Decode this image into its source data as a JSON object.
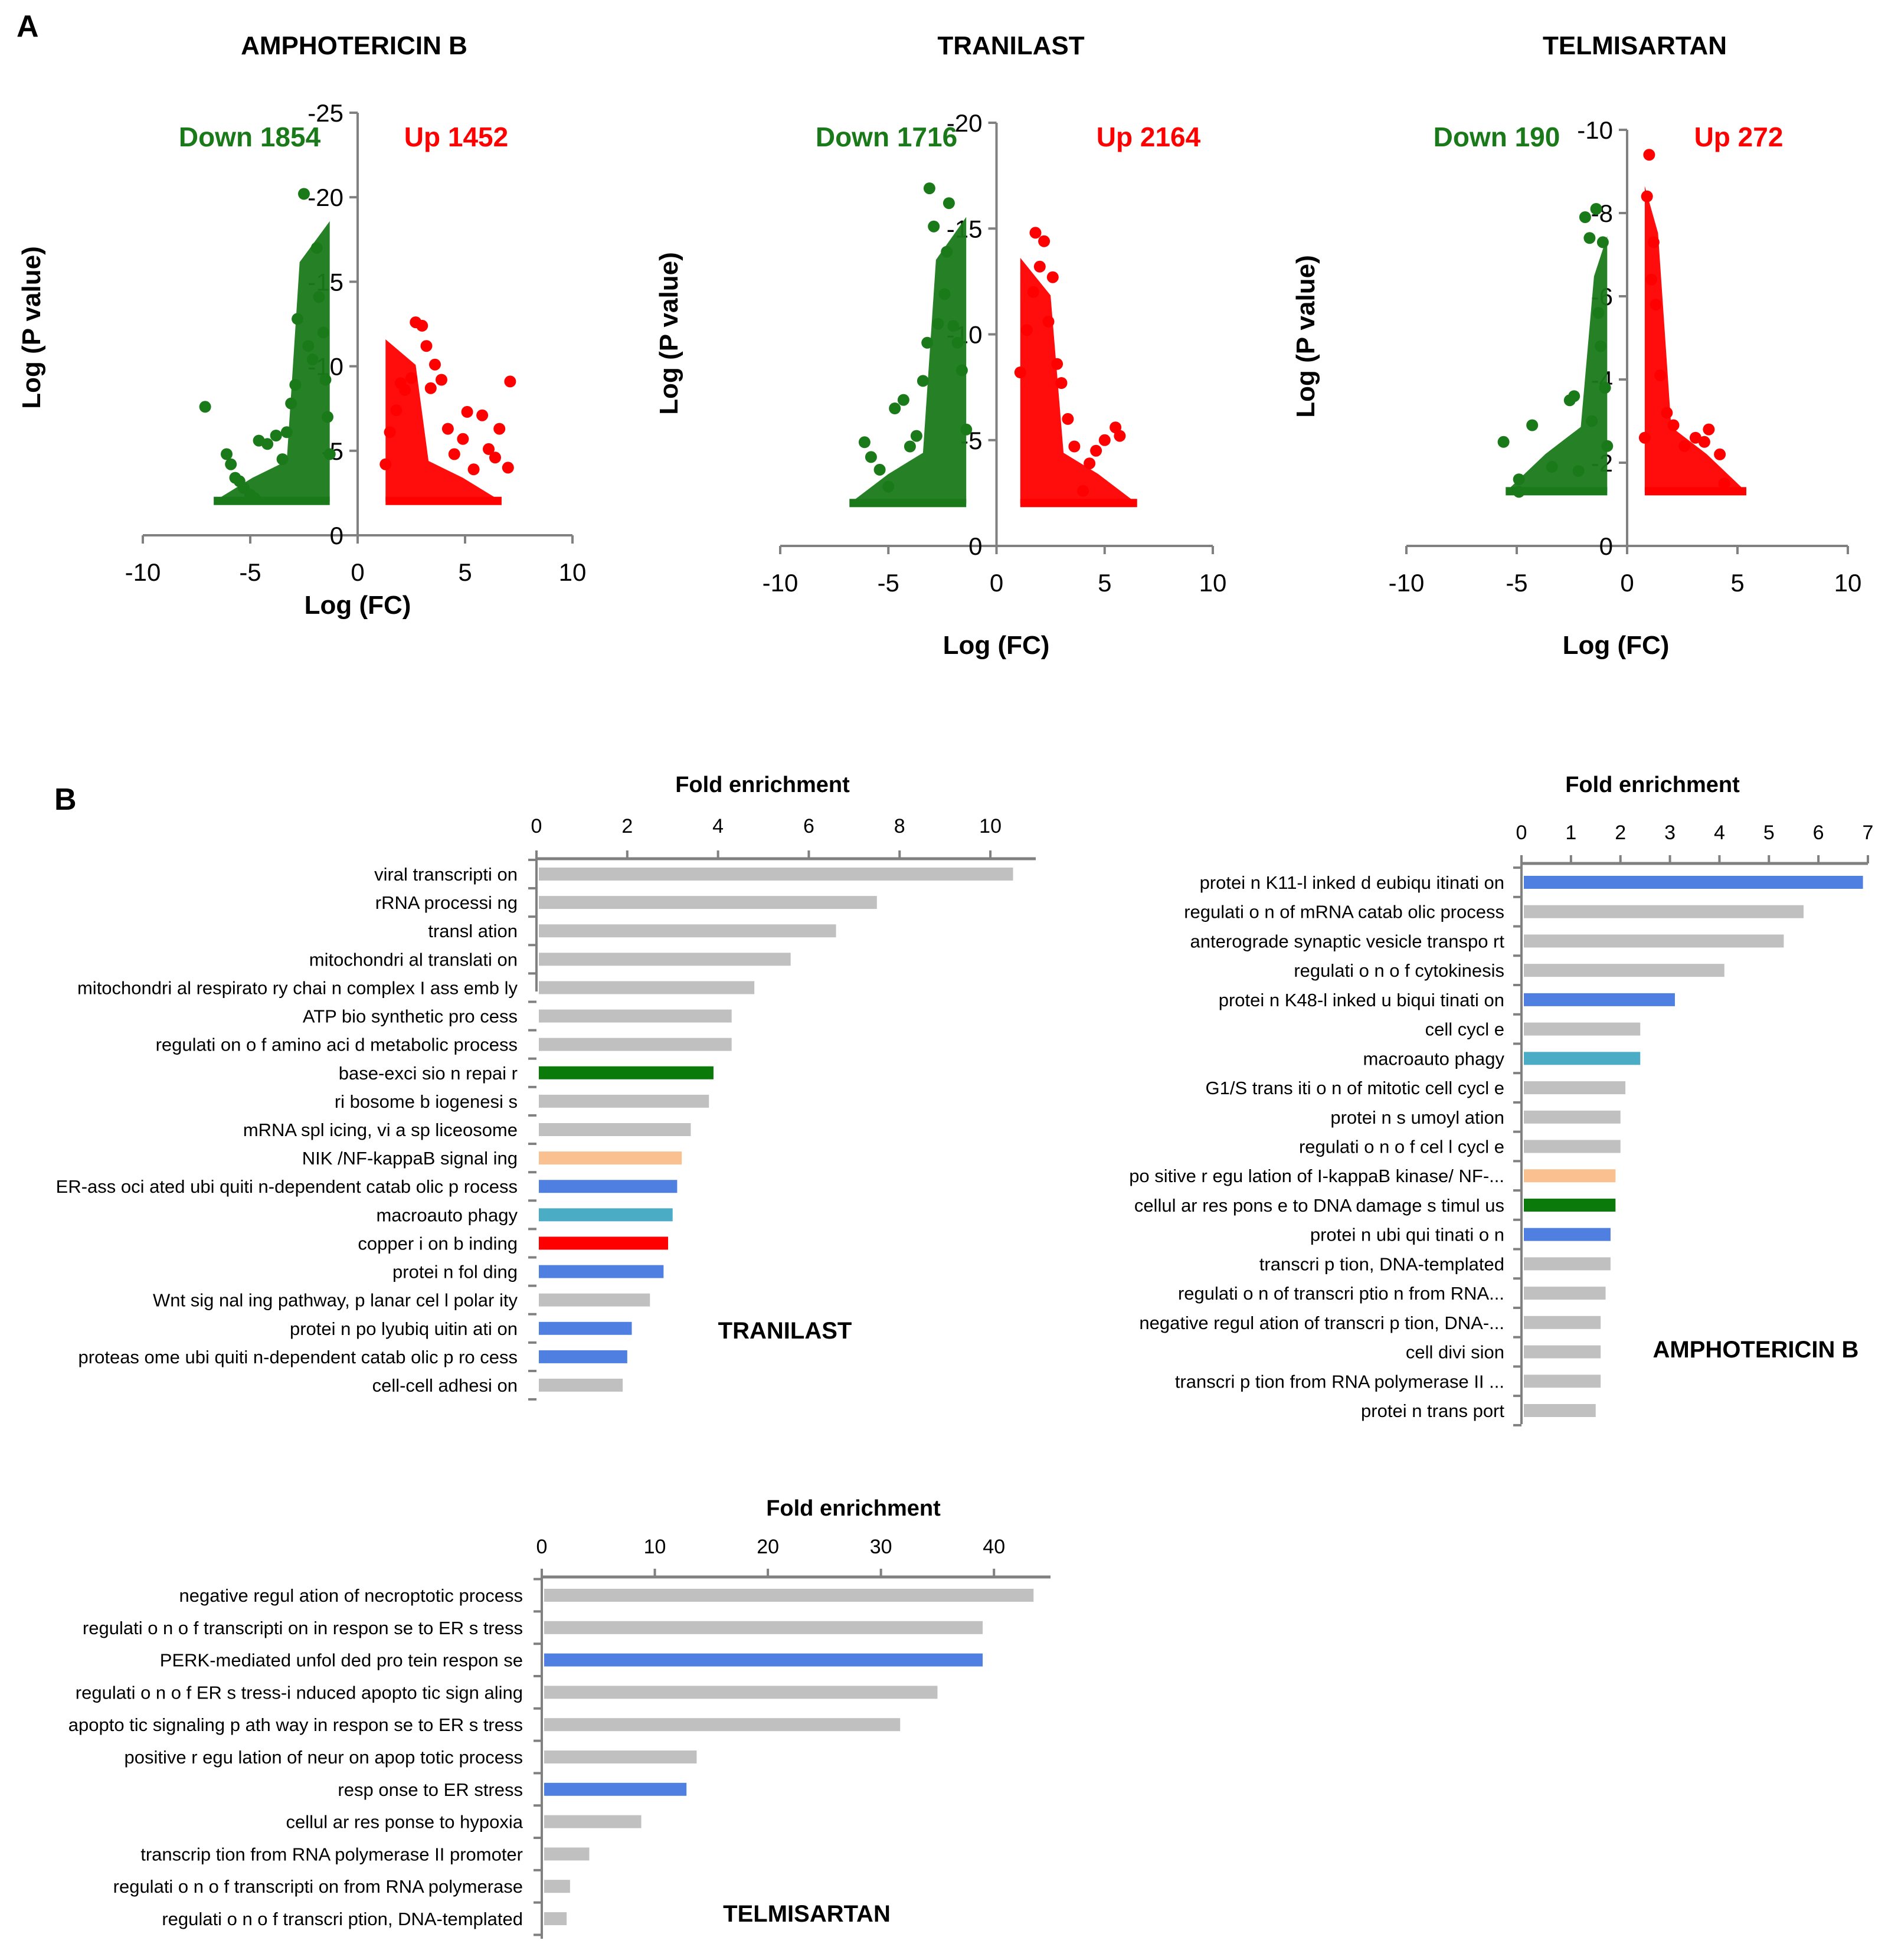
{
  "figure": {
    "panel_a_letter": "A",
    "panel_b_letter": "B"
  },
  "colors": {
    "down": "#1a7a1a",
    "up": "#ff0000",
    "gray": "#c0c0c0",
    "blue": "#4f7fe0",
    "teal": "#4bacc6",
    "green": "#0a7a0a",
    "peach": "#fac090",
    "red": "#ff0000",
    "axis": "#808080",
    "text": "#000000"
  },
  "chart_data": [
    {
      "type": "scatter",
      "id": "volcano-amphotericin",
      "title": "AMPHOTERICIN B",
      "xlabel": "Log (FC)",
      "ylabel": "Log (P value)",
      "xlim": [
        -10,
        10
      ],
      "ylim": [
        0,
        -25
      ],
      "xticks": [
        "-10",
        "-5",
        "0",
        "5",
        "10"
      ],
      "yticks": [
        "-25",
        "-20",
        "-15",
        "-10",
        "-5",
        "0"
      ],
      "down_label": "Down 1854",
      "up_label": "Up 1452",
      "series": [
        {
          "name": "Down",
          "points": [
            [
              -7.1,
              -7.6
            ],
            [
              -6.1,
              -4.8
            ],
            [
              -5.9,
              -4.2
            ],
            [
              -5.7,
              -3.4
            ],
            [
              -5.5,
              -3.2
            ],
            [
              -5.3,
              -2.8
            ],
            [
              -5.0,
              -2.4
            ],
            [
              -4.8,
              -2.2
            ],
            [
              -4.6,
              -5.6
            ],
            [
              -4.2,
              -5.4
            ],
            [
              -3.8,
              -5.9
            ],
            [
              -3.5,
              -4.5
            ],
            [
              -3.3,
              -6.1
            ],
            [
              -3.1,
              -7.8
            ],
            [
              -2.9,
              -8.9
            ],
            [
              -2.8,
              -12.8
            ],
            [
              -2.5,
              -20.2
            ],
            [
              -2.3,
              -11.2
            ],
            [
              -2.1,
              -10.4
            ],
            [
              -1.9,
              -17.0
            ],
            [
              -1.8,
              -14.1
            ],
            [
              -1.6,
              -12.0
            ],
            [
              -1.5,
              -9.2
            ],
            [
              -1.4,
              -7.0
            ],
            [
              -1.3,
              -4.8
            ]
          ]
        },
        {
          "name": "Up",
          "points": [
            [
              1.3,
              -4.2
            ],
            [
              1.5,
              -6.1
            ],
            [
              1.8,
              -7.4
            ],
            [
              2.0,
              -9.0
            ],
            [
              2.2,
              -8.6
            ],
            [
              2.5,
              -9.3
            ],
            [
              2.7,
              -12.6
            ],
            [
              3.0,
              -12.4
            ],
            [
              3.2,
              -11.2
            ],
            [
              3.4,
              -8.7
            ],
            [
              3.6,
              -10.1
            ],
            [
              3.9,
              -9.2
            ],
            [
              4.2,
              -6.3
            ],
            [
              4.5,
              -4.8
            ],
            [
              4.9,
              -5.7
            ],
            [
              5.1,
              -7.3
            ],
            [
              5.4,
              -3.9
            ],
            [
              5.8,
              -7.1
            ],
            [
              6.1,
              -5.1
            ],
            [
              6.4,
              -4.6
            ],
            [
              6.6,
              -6.3
            ],
            [
              7.0,
              -4.0
            ],
            [
              7.1,
              -9.1
            ]
          ]
        }
      ]
    },
    {
      "type": "scatter",
      "id": "volcano-tranilast",
      "title": "TRANILAST",
      "xlabel": "Log (FC)",
      "ylabel": "Log (P value)",
      "xlim": [
        -10,
        10
      ],
      "ylim": [
        0,
        -20
      ],
      "xticks": [
        "-10",
        "-5",
        "0",
        "5",
        "10"
      ],
      "yticks": [
        "-20",
        "-15",
        "-10",
        "-5",
        "0"
      ],
      "down_label": "Down 1716",
      "up_label": "Up 2164",
      "series": [
        {
          "name": "Down",
          "points": [
            [
              -6.1,
              -4.9
            ],
            [
              -5.8,
              -4.2
            ],
            [
              -5.4,
              -3.6
            ],
            [
              -5.0,
              -2.8
            ],
            [
              -4.7,
              -6.5
            ],
            [
              -4.3,
              -6.9
            ],
            [
              -4.0,
              -4.7
            ],
            [
              -3.7,
              -5.2
            ],
            [
              -3.4,
              -7.8
            ],
            [
              -3.2,
              -9.6
            ],
            [
              -3.1,
              -16.9
            ],
            [
              -2.9,
              -15.1
            ],
            [
              -2.7,
              -10.5
            ],
            [
              -2.4,
              -11.9
            ],
            [
              -2.3,
              -13.9
            ],
            [
              -2.2,
              -16.2
            ],
            [
              -2.0,
              -10.4
            ],
            [
              -1.8,
              -9.6
            ],
            [
              -1.6,
              -8.3
            ],
            [
              -1.4,
              -5.5
            ]
          ]
        },
        {
          "name": "Up",
          "points": [
            [
              1.1,
              -8.2
            ],
            [
              1.4,
              -10.2
            ],
            [
              1.7,
              -12.0
            ],
            [
              1.8,
              -14.8
            ],
            [
              2.0,
              -13.2
            ],
            [
              2.2,
              -14.4
            ],
            [
              2.4,
              -10.6
            ],
            [
              2.6,
              -12.7
            ],
            [
              2.8,
              -8.6
            ],
            [
              3.0,
              -7.7
            ],
            [
              3.3,
              -6.0
            ],
            [
              3.6,
              -4.7
            ],
            [
              4.0,
              -2.6
            ],
            [
              4.3,
              -3.9
            ],
            [
              4.6,
              -4.5
            ],
            [
              5.0,
              -5.0
            ],
            [
              5.5,
              -5.6
            ],
            [
              5.7,
              -5.2
            ]
          ]
        }
      ]
    },
    {
      "type": "scatter",
      "id": "volcano-telmisartan",
      "title": "TELMISARTAN",
      "xlabel": "Log (FC)",
      "ylabel": "Log (P value)",
      "xlim": [
        -10,
        10
      ],
      "ylim": [
        0,
        -10
      ],
      "xticks": [
        "-10",
        "-5",
        "0",
        "5",
        "10"
      ],
      "yticks": [
        "-10",
        "-8",
        "-6",
        "-4",
        "-2",
        "0"
      ],
      "down_label": "Down 190",
      "up_label": "Up 272",
      "series": [
        {
          "name": "Down",
          "points": [
            [
              -5.6,
              -2.5
            ],
            [
              -4.9,
              -1.6
            ],
            [
              -4.9,
              -1.3
            ],
            [
              -4.3,
              -2.9
            ],
            [
              -3.4,
              -1.9
            ],
            [
              -2.6,
              -3.5
            ],
            [
              -2.4,
              -3.6
            ],
            [
              -2.2,
              -1.8
            ],
            [
              -1.9,
              -7.9
            ],
            [
              -1.7,
              -7.4
            ],
            [
              -1.6,
              -3.0
            ],
            [
              -1.4,
              -8.1
            ],
            [
              -1.3,
              -5.6
            ],
            [
              -1.2,
              -4.8
            ],
            [
              -1.1,
              -7.3
            ],
            [
              -1.0,
              -3.8
            ],
            [
              -0.9,
              -2.4
            ]
          ]
        },
        {
          "name": "Up",
          "points": [
            [
              0.8,
              -2.6
            ],
            [
              0.9,
              -8.4
            ],
            [
              1.0,
              -9.4
            ],
            [
              1.1,
              -6.4
            ],
            [
              1.2,
              -7.3
            ],
            [
              1.3,
              -5.8
            ],
            [
              1.5,
              -4.1
            ],
            [
              1.8,
              -3.2
            ],
            [
              2.1,
              -2.9
            ],
            [
              2.6,
              -2.4
            ],
            [
              3.1,
              -2.6
            ],
            [
              3.5,
              -2.5
            ],
            [
              3.7,
              -2.8
            ],
            [
              4.2,
              -2.2
            ],
            [
              4.4,
              -1.5
            ]
          ]
        }
      ]
    },
    {
      "type": "bar",
      "orientation": "horizontal",
      "id": "enrich-tranilast",
      "title": "Fold enrichment",
      "label": "TRANILAST",
      "xlim": [
        0,
        11
      ],
      "ticks": [
        "0",
        "2",
        "4",
        "6",
        "8",
        "10"
      ],
      "categories": [
        "viral transcripti on",
        "rRNA processi ng",
        "transl ation",
        "mitochondri al translati on",
        "mitochondri al respirato ry chai n complex I ass emb ly",
        "ATP bio synthetic pro cess",
        "regulati on o f amino aci d metabolic process",
        "base-exci sio n repai r",
        "ri bosome b iogenesi s",
        "mRNA spl icing, vi a sp liceosome",
        "NIK /NF-kappaB signal ing",
        "ER-ass oci ated ubi quiti n-dependent catab olic p rocess",
        "macroauto phagy",
        "copper i on b inding",
        "protei n fol ding",
        "Wnt sig nal ing pathway, p lanar cel l polar ity",
        "protei n po lyubiq uitin ati on",
        "proteas ome ubi quiti n-dependent catab olic p ro cess",
        "cell-cell adhesi on"
      ],
      "values": [
        10.5,
        7.5,
        6.6,
        5.6,
        4.8,
        4.3,
        4.3,
        3.9,
        3.8,
        3.4,
        3.2,
        3.1,
        3.0,
        2.9,
        2.8,
        2.5,
        2.1,
        2.0,
        1.9
      ],
      "bar_colors": [
        "gray",
        "gray",
        "gray",
        "gray",
        "gray",
        "gray",
        "gray",
        "green",
        "gray",
        "gray",
        "peach",
        "blue",
        "teal",
        "red",
        "blue",
        "gray",
        "blue",
        "blue",
        "gray"
      ]
    },
    {
      "type": "bar",
      "orientation": "horizontal",
      "id": "enrich-amphotericin",
      "title": "Fold enrichment",
      "label": "AMPHOTERICIN B",
      "xlim": [
        0,
        7
      ],
      "ticks": [
        "0",
        "1",
        "2",
        "3",
        "4",
        "5",
        "6",
        "7"
      ],
      "categories": [
        "protei n K11-l inked d eubiqu itinati on",
        "regulati o n of mRNA catab olic process",
        "anterograde synaptic vesicle transpo rt",
        "regulati o n o f cytokinesis",
        "protei n K48-l inked u biqui tinati on",
        "cell cycl e",
        "macroauto phagy",
        "G1/S trans iti o n of mitotic cell cycl e",
        "protei n s umoyl ation",
        "regulati o n o f cel l cycl e",
        "po sitive r egu lation of I-kappaB kinase/ NF-...",
        "cellul ar res pons e to DNA damage s timul us",
        "protei n ubi qui tinati o n",
        "transcri p tion, DNA-templated",
        "regulati o n of transcri ptio n from RNA...",
        "negative regul ation of transcri p tion, DNA-...",
        "cell divi sion",
        "transcri p tion from RNA polymerase II ...",
        "protei n trans port"
      ],
      "values": [
        6.9,
        5.7,
        5.3,
        4.1,
        3.1,
        2.4,
        2.4,
        2.1,
        2.0,
        2.0,
        1.9,
        1.9,
        1.8,
        1.8,
        1.7,
        1.6,
        1.6,
        1.6,
        1.5
      ],
      "bar_colors": [
        "blue",
        "gray",
        "gray",
        "gray",
        "blue",
        "gray",
        "teal",
        "gray",
        "gray",
        "gray",
        "peach",
        "green",
        "blue",
        "gray",
        "gray",
        "gray",
        "gray",
        "gray",
        "gray"
      ]
    },
    {
      "type": "bar",
      "orientation": "horizontal",
      "id": "enrich-telmisartan",
      "title": "Fold enrichment",
      "label": "TELMISARTAN",
      "xlim": [
        0,
        45
      ],
      "ticks": [
        "0",
        "10",
        "20",
        "30",
        "40"
      ],
      "categories": [
        "negative regul ation of necroptotic process",
        "regulati o n o f transcripti on in respon se to ER s tress",
        "PERK-mediated unfol ded pro tein respon se",
        "regulati o n o f ER s tress-i nduced apopto tic sign aling",
        "apopto tic signaling p ath way in respon se to ER s tress",
        "positive r egu lation of neur on apop totic process",
        "resp onse to ER stress",
        "cellul ar res ponse to hypoxia",
        "transcrip tion from RNA polymerase II promoter",
        "regulati o n o f transcripti on from RNA polymerase",
        "regulati o n o f transcri ption, DNA-templated"
      ],
      "values": [
        43.5,
        39.0,
        39.0,
        35.0,
        31.7,
        13.7,
        12.8,
        8.8,
        4.2,
        2.5,
        2.2
      ],
      "bar_colors": [
        "gray",
        "gray",
        "blue",
        "gray",
        "gray",
        "gray",
        "blue",
        "gray",
        "gray",
        "gray",
        "gray"
      ]
    }
  ]
}
